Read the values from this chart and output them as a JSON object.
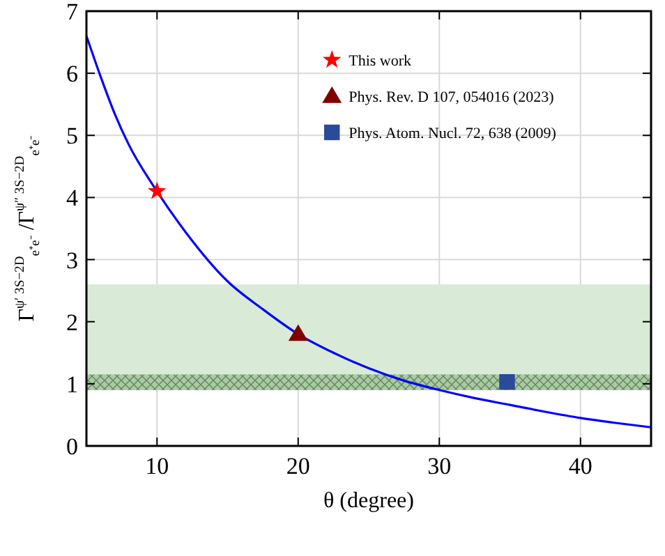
{
  "chart_data": {
    "type": "line",
    "xlabel": "θ (degree)",
    "ylabel": "Γ$^{ψ′ 3S−2D}$$_{e⁺e⁻}$ /Γ$^{ψ″ 3S−2D}$$_{e⁺e⁻}$",
    "xlim": [
      5,
      45
    ],
    "ylim": [
      0,
      7
    ],
    "xticks": [
      10,
      20,
      30,
      40
    ],
    "yticks": [
      0,
      1,
      2,
      3,
      4,
      5,
      6,
      7
    ],
    "grid": true,
    "legend": "top right",
    "bands": [
      {
        "axis": "y",
        "from": 0.9,
        "to": 2.6,
        "color": "#d9ead7"
      },
      {
        "axis": "y",
        "from": 0.9,
        "to": 1.15,
        "color": "#9ccc95"
      }
    ],
    "series": [
      {
        "color": "#0000ff",
        "marker": "none",
        "x": [
          5,
          6,
          7,
          8,
          10,
          12,
          15,
          17.5,
          20,
          22.5,
          25,
          27.5,
          30,
          32.5,
          35,
          37.5,
          40,
          42.5,
          45
        ],
        "values": [
          6.6,
          5.95,
          5.35,
          4.85,
          4.1,
          3.45,
          2.65,
          2.2,
          1.8,
          1.5,
          1.25,
          1.05,
          0.9,
          0.77,
          0.66,
          0.55,
          0.45,
          0.37,
          0.3
        ]
      },
      {
        "type": "scatter",
        "name": "This work",
        "color": "#ff0000",
        "marker": "star",
        "x": [
          10
        ],
        "values": [
          4.1
        ]
      },
      {
        "type": "scatter",
        "name": "Phys. Rev. D 107, 054016 (2023)",
        "color": "#800000",
        "marker": "triangle",
        "x": [
          20
        ],
        "values": [
          1.8
        ]
      },
      {
        "type": "scatter",
        "name": "Phys. Atom. Nucl. 72, 638 (2009)",
        "color": "#2a4a9a",
        "marker": "square",
        "x": [
          34.8
        ],
        "values": [
          1.03
        ]
      }
    ]
  }
}
